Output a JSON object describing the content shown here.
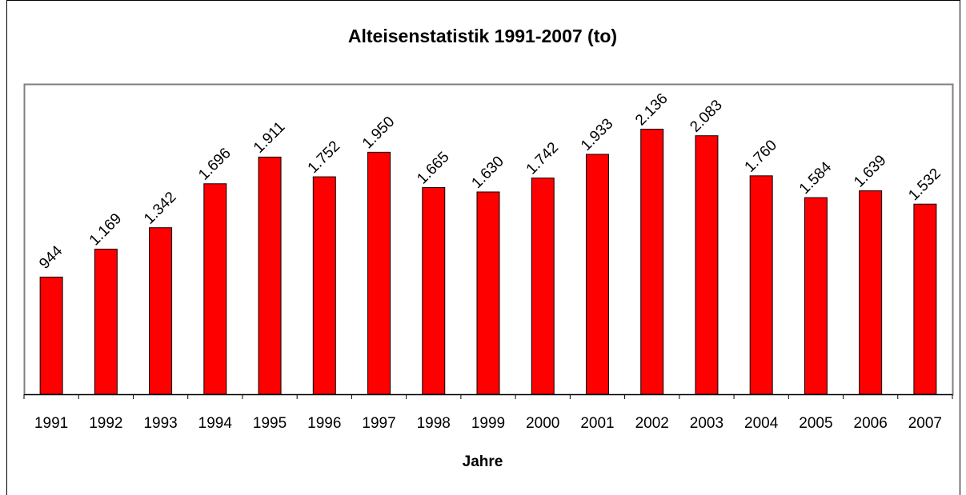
{
  "chart_data": {
    "type": "bar",
    "title": "Alteisenstatistik 1991-2007 (to)",
    "x_label": "Jahre",
    "categories": [
      "1991",
      "1992",
      "1993",
      "1994",
      "1995",
      "1996",
      "1997",
      "1998",
      "1999",
      "2000",
      "2001",
      "2002",
      "2003",
      "2004",
      "2005",
      "2006",
      "2007"
    ],
    "values": [
      944,
      1169,
      1342,
      1696,
      1911,
      1752,
      1950,
      1665,
      1630,
      1742,
      1933,
      2136,
      2083,
      1760,
      1584,
      1639,
      1532
    ],
    "value_labels": [
      "944",
      "1.169",
      "1.342",
      "1.696",
      "1.911",
      "1.752",
      "1.950",
      "1.665",
      "1.630",
      "1.742",
      "1.933",
      "2.136",
      "2.083",
      "1.760",
      "1.584",
      "1.639",
      "1.532"
    ],
    "color": "#ff0000",
    "ylim": [
      0,
      2500
    ]
  }
}
